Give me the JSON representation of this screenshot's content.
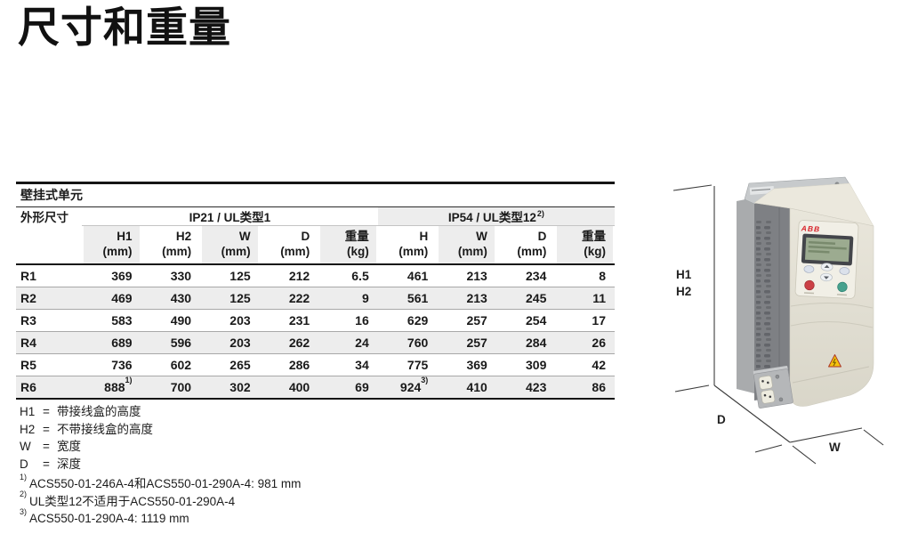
{
  "page": {
    "title": "尺寸和重量"
  },
  "table": {
    "section_title": "壁挂式单元",
    "corner_label": "外形尺寸",
    "groups": [
      {
        "label": "IP21 / UL类型1",
        "sup": "",
        "span": 5
      },
      {
        "label": "IP54 / UL类型12",
        "sup": "2)",
        "span": 4
      }
    ],
    "columns": [
      {
        "label": "H1",
        "unit": "(mm)"
      },
      {
        "label": "H2",
        "unit": "(mm)"
      },
      {
        "label": "W",
        "unit": "(mm)"
      },
      {
        "label": "D",
        "unit": "(mm)"
      },
      {
        "label": "重量",
        "unit": "(kg)"
      },
      {
        "label": "H",
        "unit": "(mm)"
      },
      {
        "label": "W",
        "unit": "(mm)"
      },
      {
        "label": "D",
        "unit": "(mm)"
      },
      {
        "label": "重量",
        "unit": "(kg)"
      }
    ],
    "rows": [
      {
        "frame": "R1",
        "values": [
          "369",
          "330",
          "125",
          "212",
          "6.5",
          "461",
          "213",
          "234",
          "8"
        ]
      },
      {
        "frame": "R2",
        "values": [
          "469",
          "430",
          "125",
          "222",
          "9",
          "561",
          "213",
          "245",
          "11"
        ]
      },
      {
        "frame": "R3",
        "values": [
          "583",
          "490",
          "203",
          "231",
          "16",
          "629",
          "257",
          "254",
          "17"
        ]
      },
      {
        "frame": "R4",
        "values": [
          "689",
          "596",
          "203",
          "262",
          "24",
          "760",
          "257",
          "284",
          "26"
        ]
      },
      {
        "frame": "R5",
        "values": [
          "736",
          "602",
          "265",
          "286",
          "34",
          "775",
          "369",
          "309",
          "42"
        ]
      },
      {
        "frame": "R6",
        "values": [
          {
            "v": "888",
            "sup": "1)"
          },
          "700",
          "302",
          "400",
          "69",
          {
            "v": "924",
            "sup": "3)"
          },
          "410",
          "423",
          "86"
        ]
      }
    ]
  },
  "legend": {
    "separator": "=",
    "items": [
      {
        "symbol": "H1",
        "text": "带接线盒的高度"
      },
      {
        "symbol": "H2",
        "text": "不带接线盒的高度"
      },
      {
        "symbol": "W",
        "text": "宽度"
      },
      {
        "symbol": "D",
        "text": "深度"
      }
    ]
  },
  "footnotes": [
    {
      "marker": "1)",
      "text": "ACS550-01-246A-4和ACS550-01-290A-4: 981 mm"
    },
    {
      "marker": "2)",
      "text": "UL类型12不适用于ACS550-01-290A-4"
    },
    {
      "marker": "3)",
      "text": "ACS550-01-290A-4: 1119 mm"
    }
  ],
  "figure": {
    "brand": "ABB",
    "labels": {
      "h1": "H1",
      "h2": "H2",
      "d": "D",
      "w": "W"
    },
    "colors": {
      "body_beige": "#e6e3d8",
      "heatsink_gray": "#7e8084",
      "metal_gray": "#c6c9cb",
      "brand_red": "#d8232a",
      "warning_yellow": "#f4c20c",
      "lcd_green": "#9cab90",
      "stop_button_red": "#cb4046",
      "start_button_green": "#46a18d"
    }
  }
}
